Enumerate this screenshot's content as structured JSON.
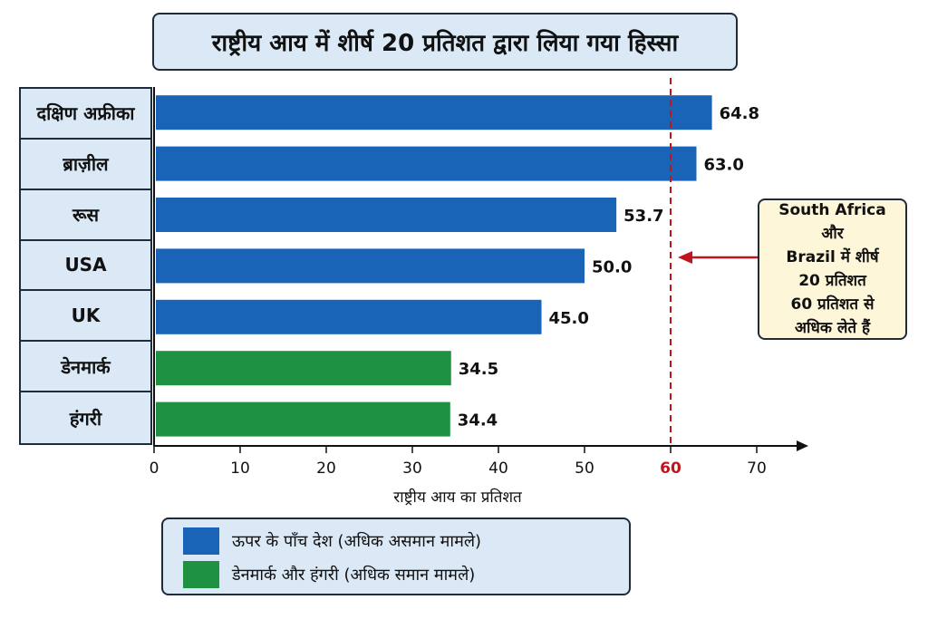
{
  "chart_data": {
    "type": "bar",
    "orientation": "horizontal",
    "title": "राष्ट्रीय आय में शीर्ष 20 प्रतिशत द्वारा लिया गया हिस्सा",
    "xlabel": "राष्ट्रीय आय का प्रतिशत",
    "ylabel": "",
    "xlim": [
      0,
      70
    ],
    "ticks": [
      0,
      10,
      20,
      30,
      40,
      50,
      60,
      70
    ],
    "highlight_tick": 60,
    "reference_line": 60,
    "categories": [
      "दक्षिण अफ्रीका",
      "ब्राज़ील",
      "रूस",
      "USA",
      "UK",
      "डेनमार्क",
      "हंगरी"
    ],
    "values": [
      64.8,
      63.0,
      53.7,
      50.0,
      45.0,
      34.5,
      34.4
    ],
    "value_labels": [
      "64.8",
      "63.0",
      "53.7",
      "50.0",
      "45.0",
      "34.5",
      "34.4"
    ],
    "groups": [
      "top",
      "top",
      "top",
      "top",
      "top",
      "equal",
      "equal"
    ],
    "legend": [
      {
        "group": "top",
        "label": "ऊपर के पाँच देश (अधिक असमान मामले)"
      },
      {
        "group": "equal",
        "label": "डेनमार्क और हंगरी (अधिक समान मामले)"
      }
    ],
    "annotation": "South Africa और\nBrazil में शीर्ष\n20 प्रतिशत\n60 प्रतिशत से\nअधिक लेते हैं",
    "grid": false,
    "legend_position": "bottom"
  },
  "colors": {
    "top": "#1a64b8",
    "equal": "#1f9142",
    "reference": "#c0141e",
    "axis": "#111111",
    "panel": "#dbe9f7",
    "callout": "#fdf6d8"
  }
}
